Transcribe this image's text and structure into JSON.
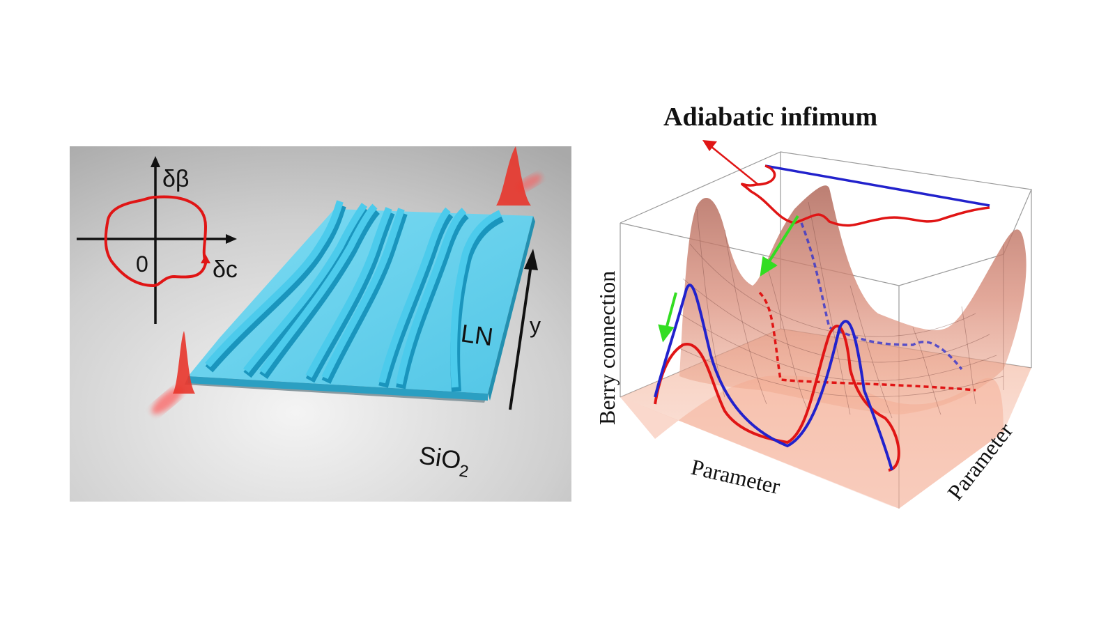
{
  "left_diagram": {
    "axis_vertical_label": "δβ",
    "axis_horizontal_label": "δc",
    "origin_label": "0",
    "material_label": "LN",
    "substrate_label_base": "SiO",
    "substrate_label_subscript": "2",
    "direction_label": "y"
  },
  "right_diagram": {
    "title": "Adiabatic infimum",
    "z_axis_label": "Berry connection",
    "x_axis_label": "Parameter",
    "y_axis_label": "Parameter"
  },
  "colors": {
    "waveguide": "#3cc0e2",
    "waveguide_dark": "#1ea3c8",
    "path_red": "#e01515",
    "path_blue": "#2222cc",
    "arrow_green": "#33dd22",
    "surface": "#e08068"
  }
}
